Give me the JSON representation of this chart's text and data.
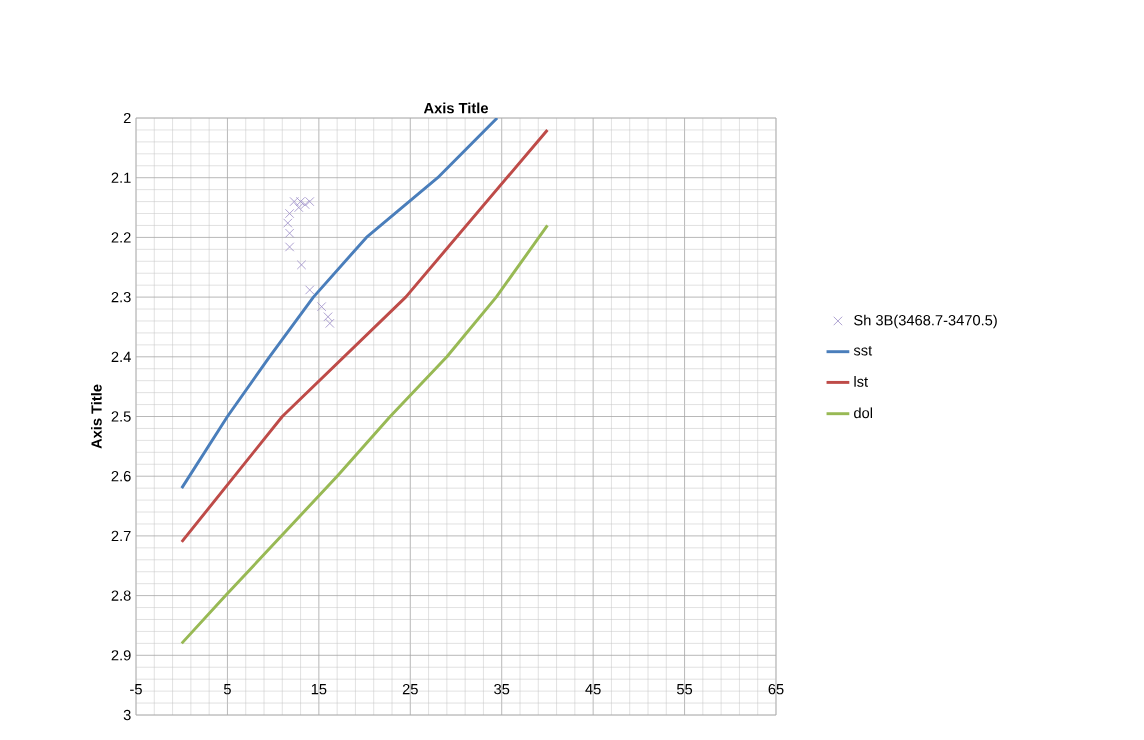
{
  "chart_data": {
    "type": "line",
    "title": "Axis Title",
    "ylabel": "Axis Title",
    "xlim": [
      -5,
      65
    ],
    "xticks": [
      -5,
      5,
      15,
      25,
      35,
      45,
      55,
      65
    ],
    "ylim": [
      3,
      2
    ],
    "yticks": [
      2,
      2.1,
      2.2,
      2.3,
      2.4,
      2.5,
      2.6,
      2.7,
      2.8,
      2.9,
      3
    ],
    "grid": true,
    "legend": "right",
    "series": [
      {
        "name": "Sh 3B(3468.7-3470.5)",
        "type": "scatter",
        "marker": "cross",
        "color": "#9a8cc6",
        "x": [
          12.3,
          13,
          13.5,
          12.8,
          14,
          11.8,
          11.6,
          11.8,
          11.8,
          13.1,
          14,
          15.3,
          16,
          16.2
        ],
        "values": [
          2.14,
          2.14,
          2.145,
          2.15,
          2.14,
          2.16,
          2.176,
          2.193,
          2.216,
          2.246,
          2.288,
          2.316,
          2.333,
          2.344
        ]
      },
      {
        "name": "sst",
        "color": "#4a7ebb",
        "x": [
          0,
          5,
          9.6,
          14.4,
          20.2,
          28,
          34.5
        ],
        "values": [
          2.62,
          2.5,
          2.4,
          2.3,
          2.2,
          2.1,
          2.0
        ]
      },
      {
        "name": "lst",
        "color": "#be4b48",
        "x": [
          0,
          11,
          24.5,
          40
        ],
        "values": [
          2.71,
          2.5,
          2.3,
          2.02
        ]
      },
      {
        "name": "dol",
        "color": "#98b954",
        "x": [
          0,
          4.8,
          17,
          22.8,
          29,
          34.4,
          40
        ],
        "values": [
          2.88,
          2.8,
          2.6,
          2.5,
          2.4,
          2.3,
          2.18
        ]
      }
    ]
  }
}
